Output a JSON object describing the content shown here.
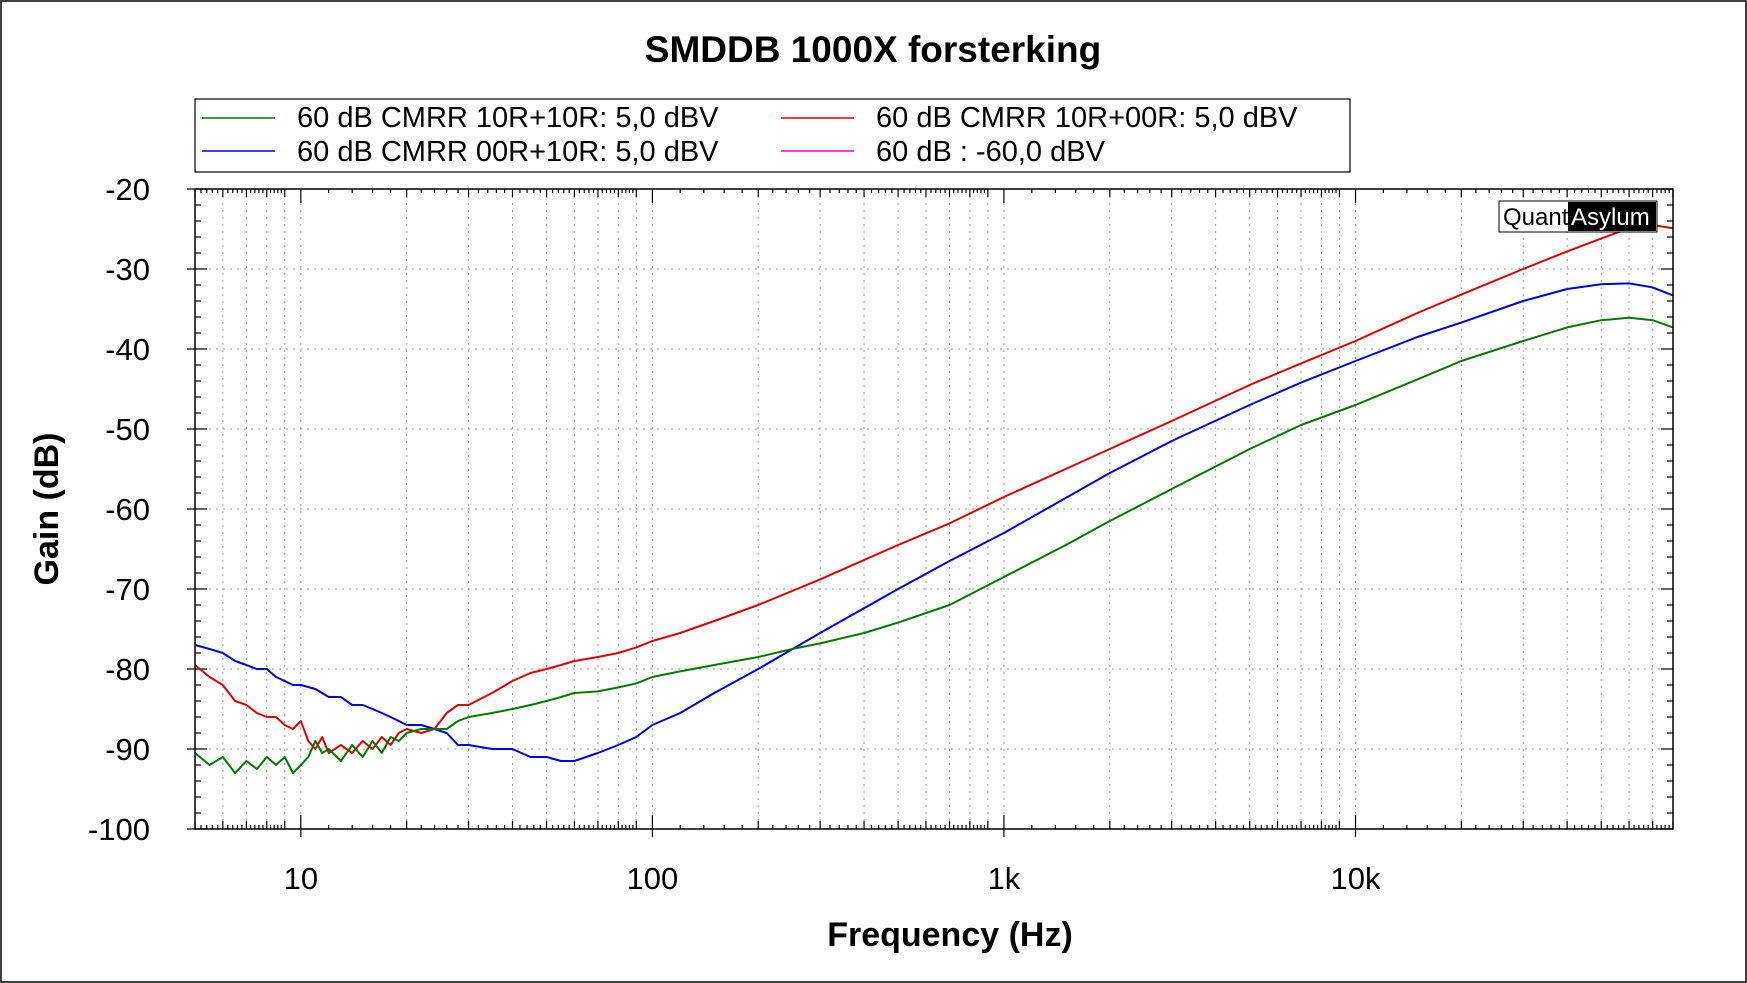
{
  "chart_data": {
    "type": "line",
    "title": "SMDDB 1000X forsterking",
    "xlabel": "Frequency (Hz)",
    "ylabel": "Gain (dB)",
    "x_scale": "log",
    "xlim": [
      5,
      80000
    ],
    "ylim": [
      -100,
      -20
    ],
    "x_ticks": [
      {
        "value": 10,
        "label": "10"
      },
      {
        "value": 100,
        "label": "100"
      },
      {
        "value": 1000,
        "label": "1k"
      },
      {
        "value": 10000,
        "label": "10k"
      }
    ],
    "y_ticks": [
      {
        "value": -20,
        "label": "-20"
      },
      {
        "value": -30,
        "label": "-30"
      },
      {
        "value": -40,
        "label": "-40"
      },
      {
        "value": -50,
        "label": "-50"
      },
      {
        "value": -60,
        "label": "-60"
      },
      {
        "value": -70,
        "label": "-70"
      },
      {
        "value": -80,
        "label": "-80"
      },
      {
        "value": -90,
        "label": "-90"
      },
      {
        "value": -100,
        "label": "-100"
      }
    ],
    "grid": true,
    "legend_position": "top",
    "watermark": {
      "part1": "Quant",
      "part2": "Asylum"
    },
    "series": [
      {
        "name": "60 dB CMRR 10R+10R: 5,0 dBV",
        "color": "#007a00",
        "x": [
          5,
          5.5,
          6,
          6.5,
          7,
          7.5,
          8,
          8.5,
          9,
          9.5,
          10,
          10.5,
          11,
          11.5,
          12,
          13,
          14,
          15,
          16,
          17,
          18,
          19,
          20,
          22,
          24,
          26,
          28,
          30,
          35,
          40,
          45,
          50,
          55,
          60,
          70,
          80,
          90,
          100,
          120,
          150,
          200,
          250,
          300,
          400,
          500,
          700,
          1000,
          1500,
          2000,
          3000,
          5000,
          7000,
          10000,
          15000,
          20000,
          30000,
          40000,
          50000,
          60000,
          70000,
          80000
        ],
        "y": [
          -90.5,
          -92,
          -91,
          -93,
          -91.5,
          -92.5,
          -91,
          -92,
          -91,
          -93,
          -92,
          -91,
          -89,
          -90.5,
          -90,
          -91.5,
          -89.5,
          -91,
          -89,
          -90.5,
          -88.5,
          -89,
          -88,
          -87.5,
          -87.5,
          -87.5,
          -86.5,
          -86,
          -85.5,
          -85,
          -84.5,
          -84,
          -83.5,
          -83,
          -82.8,
          -82.3,
          -81.8,
          -81,
          -80.3,
          -79.5,
          -78.5,
          -77.5,
          -76.8,
          -75.5,
          -74.2,
          -72,
          -68.5,
          -64.5,
          -61.5,
          -57.5,
          -52.5,
          -49.5,
          -47,
          -43.8,
          -41.5,
          -39,
          -37.3,
          -36.4,
          -36.1,
          -36.4,
          -37.3
        ]
      },
      {
        "name": "60 dB CMRR 10R+00R: 5,0 dBV",
        "color": "#e00000",
        "x": [
          5,
          5.5,
          6,
          6.5,
          7,
          7.5,
          8,
          8.5,
          9,
          9.5,
          10,
          10.5,
          11,
          11.5,
          12,
          13,
          14,
          15,
          16,
          17,
          18,
          19,
          20,
          22,
          24,
          26,
          28,
          30,
          35,
          40,
          45,
          50,
          55,
          60,
          70,
          80,
          90,
          100,
          120,
          150,
          200,
          300,
          500,
          700,
          1000,
          2000,
          3000,
          5000,
          7000,
          10000,
          15000,
          20000,
          30000,
          40000,
          50000,
          60000,
          70000,
          80000
        ],
        "y": [
          -79.5,
          -81,
          -82,
          -84,
          -84.5,
          -85.5,
          -86,
          -86,
          -87,
          -87.5,
          -86.5,
          -89,
          -90,
          -88.5,
          -90.5,
          -89.5,
          -90.5,
          -89,
          -90,
          -88.5,
          -89.5,
          -88,
          -87.5,
          -88,
          -87.5,
          -85.5,
          -84.5,
          -84.5,
          -83,
          -81.5,
          -80.5,
          -80,
          -79.5,
          -79,
          -78.5,
          -78,
          -77.3,
          -76.5,
          -75.5,
          -74,
          -72,
          -68.8,
          -64.5,
          -61.8,
          -58.5,
          -52.5,
          -49,
          -44.5,
          -41.8,
          -39,
          -35.5,
          -33.2,
          -30,
          -27.8,
          -26.2,
          -24.9,
          -24.5,
          -24.9
        ]
      },
      {
        "name": "60 dB CMRR 00R+10R: 5,0 dBV",
        "color": "#0000e6",
        "x": [
          5,
          5.5,
          6,
          6.5,
          7,
          7.5,
          8,
          8.5,
          9,
          9.5,
          10,
          11,
          12,
          13,
          14,
          15,
          16,
          17,
          18,
          19,
          20,
          22,
          24,
          26,
          28,
          30,
          35,
          40,
          45,
          50,
          55,
          60,
          70,
          80,
          90,
          100,
          120,
          150,
          200,
          300,
          500,
          700,
          1000,
          2000,
          3000,
          5000,
          7000,
          10000,
          15000,
          20000,
          30000,
          40000,
          50000,
          60000,
          70000,
          80000
        ],
        "y": [
          -77,
          -77.5,
          -78,
          -79,
          -79.5,
          -80,
          -80,
          -81,
          -81.5,
          -82,
          -82,
          -82.5,
          -83.5,
          -83.5,
          -84.5,
          -84.5,
          -85,
          -85.5,
          -86,
          -86.5,
          -87,
          -87,
          -87.5,
          -88,
          -89.5,
          -89.5,
          -90,
          -90,
          -91,
          -91,
          -91.5,
          -91.5,
          -90.5,
          -89.5,
          -88.5,
          -87,
          -85.5,
          -83,
          -80,
          -75.5,
          -70,
          -66.5,
          -63,
          -55.5,
          -51.5,
          -47,
          -44.2,
          -41.5,
          -38.5,
          -36.7,
          -34,
          -32.5,
          -31.9,
          -31.8,
          -32.3,
          -33.3
        ]
      },
      {
        "name": "60 dB : -60,0 dBV",
        "color": "#e600e6",
        "x": [],
        "y": []
      }
    ]
  }
}
